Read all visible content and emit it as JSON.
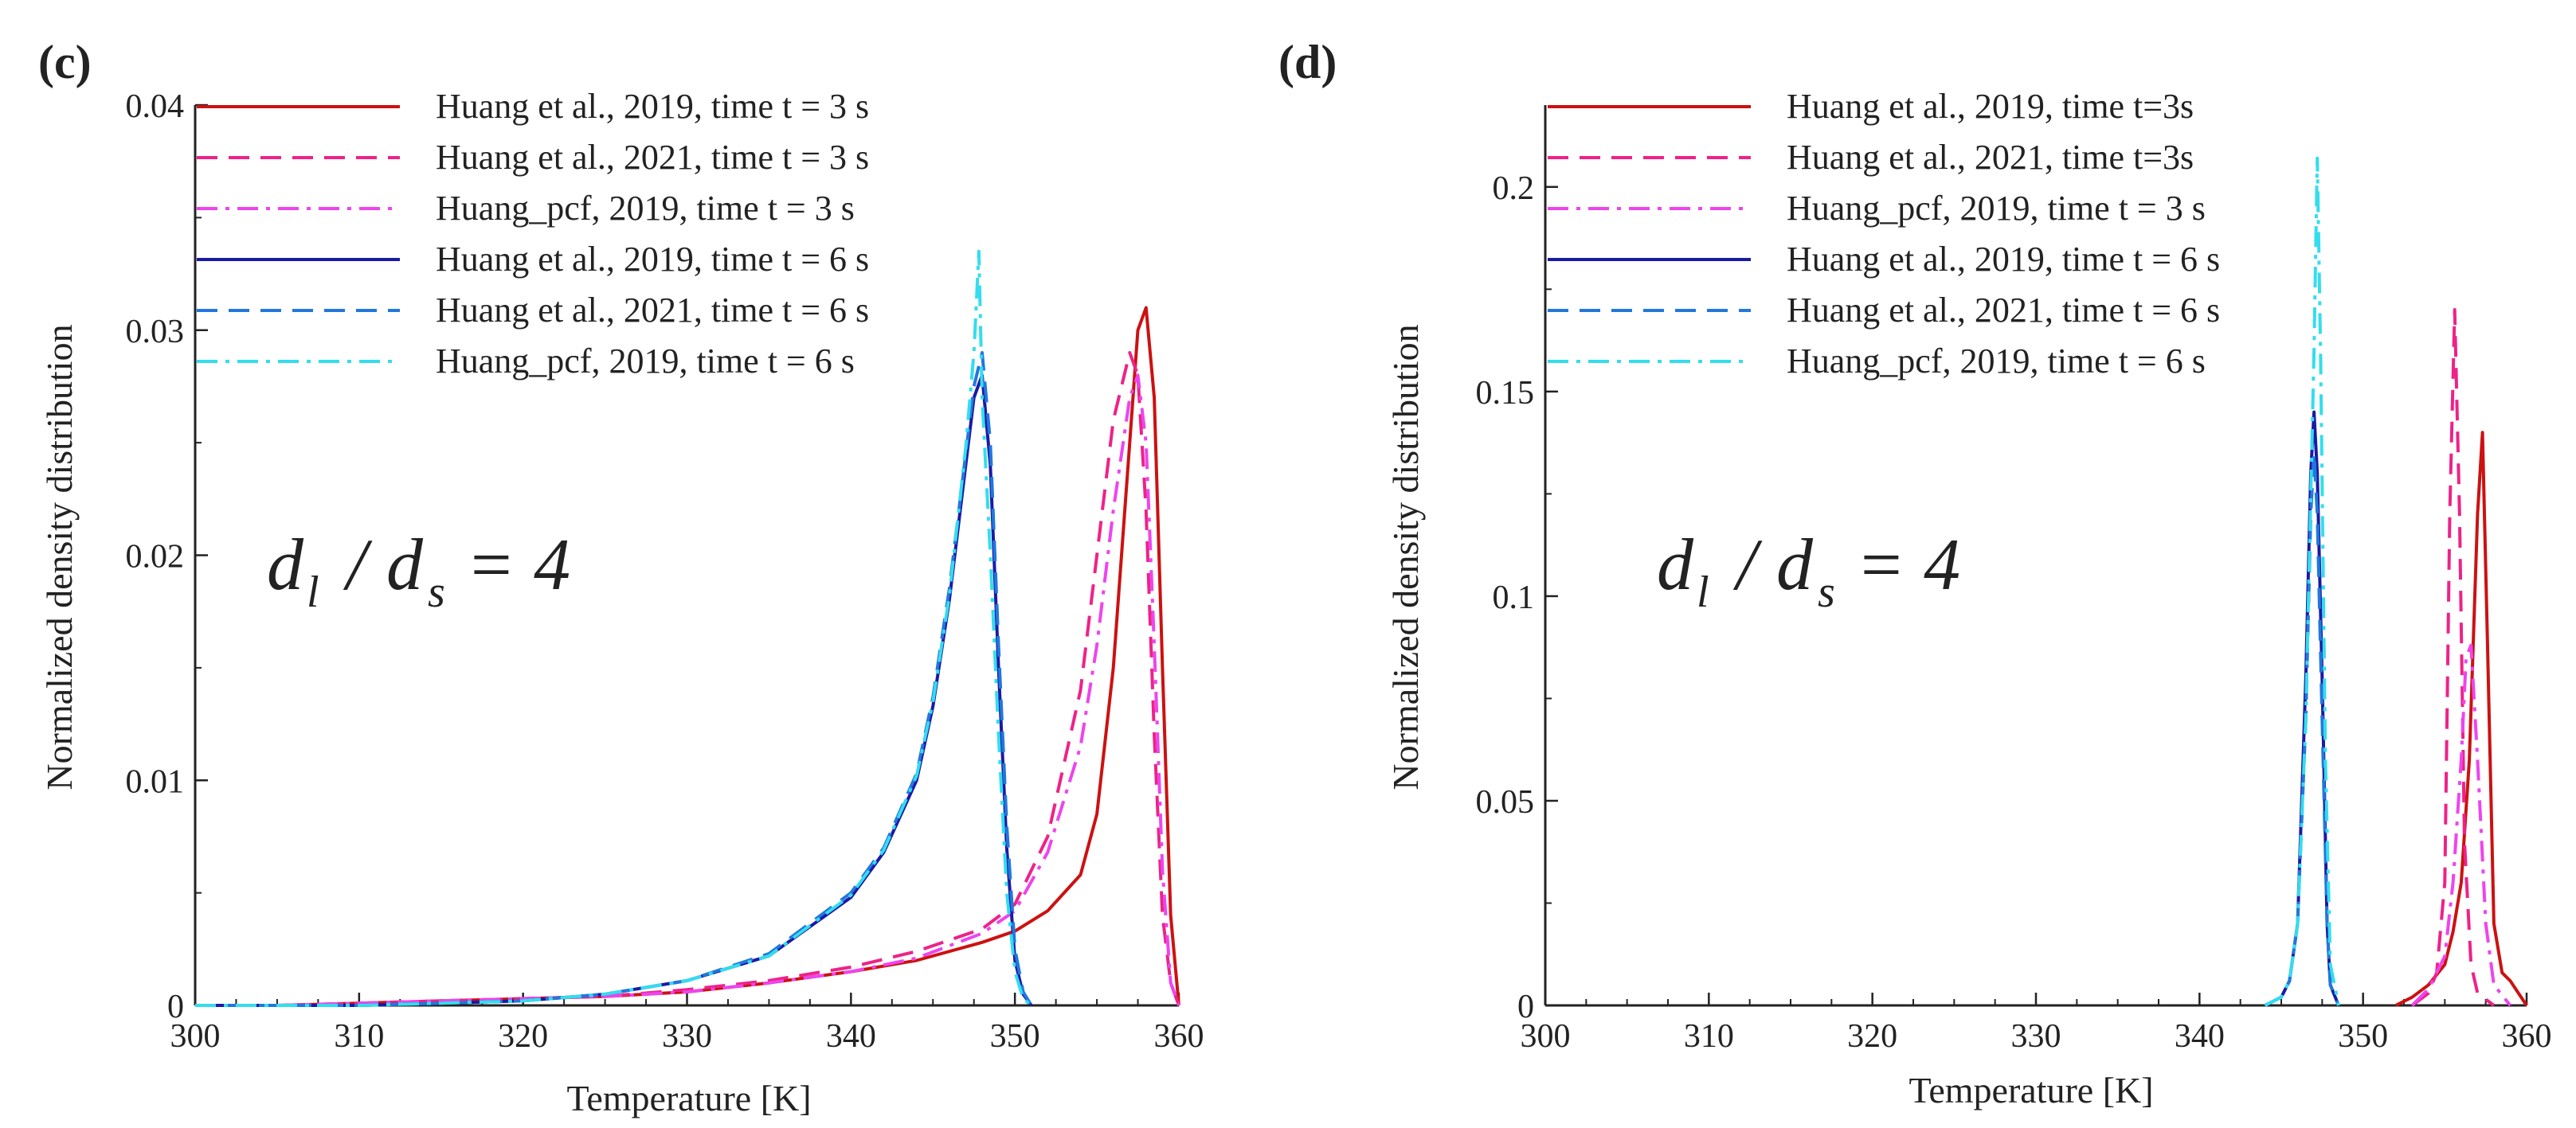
{
  "chart_data": [
    {
      "type": "line",
      "panel_label": "(c)",
      "xlabel": "Temperature [K]",
      "ylabel": "Normalized density distribution",
      "xlim": [
        300,
        360
      ],
      "ylim": [
        0,
        0.04
      ],
      "x_ticks": [
        300,
        310,
        320,
        330,
        340,
        350,
        360
      ],
      "x_tick_labels": [
        "300",
        "310",
        "320",
        "330",
        "340",
        "350",
        "360"
      ],
      "y_ticks": [
        0,
        0.01,
        0.02,
        0.03,
        0.04
      ],
      "y_tick_labels": [
        "0",
        "0.01",
        "0.02",
        "0.03",
        "0.04"
      ],
      "annotation": {
        "base1": "d",
        "sub1": "l",
        "sep": "/",
        "base2": "d",
        "sub2": "s",
        "rhs": "= 4"
      },
      "legend_position": "top-left",
      "series": [
        {
          "name": "Huang et al., 2019, time t = 3 s",
          "color": "#cc1111",
          "style": "solid",
          "x": [
            300,
            305,
            310,
            315,
            320,
            325,
            330,
            335,
            340,
            344,
            348,
            350,
            352,
            354,
            355,
            356,
            357,
            357.5,
            358,
            358.5,
            359,
            359.5,
            360
          ],
          "y": [
            0,
            0,
            0.0001,
            0.0002,
            0.0003,
            0.0004,
            0.0006,
            0.001,
            0.0015,
            0.002,
            0.0028,
            0.0033,
            0.0042,
            0.0058,
            0.0085,
            0.015,
            0.025,
            0.03,
            0.031,
            0.027,
            0.015,
            0.004,
            0
          ]
        },
        {
          "name": "Huang et al., 2021, time t = 3 s",
          "color": "#ee2288",
          "style": "dashed",
          "x": [
            300,
            305,
            310,
            315,
            320,
            325,
            330,
            335,
            340,
            344,
            348,
            350,
            352,
            354,
            355,
            356,
            357,
            357.5,
            358,
            358.5,
            359,
            359.5,
            360
          ],
          "y": [
            0,
            0,
            0.0001,
            0.0002,
            0.0003,
            0.0004,
            0.0007,
            0.0011,
            0.0017,
            0.0024,
            0.0034,
            0.0045,
            0.0075,
            0.014,
            0.02,
            0.026,
            0.029,
            0.028,
            0.022,
            0.012,
            0.004,
            0.001,
            0
          ]
        },
        {
          "name": "Huang_pcf, 2019, time t = 3 s",
          "color": "#ee44ee",
          "style": "dashdot",
          "x": [
            300,
            305,
            310,
            315,
            320,
            325,
            330,
            335,
            340,
            344,
            348,
            350,
            352,
            354,
            355,
            356,
            357,
            357.5,
            358,
            358.5,
            359,
            359.5,
            360
          ],
          "y": [
            0,
            0,
            0.0001,
            0.0002,
            0.0003,
            0.0004,
            0.0006,
            0.001,
            0.0015,
            0.0021,
            0.0032,
            0.0042,
            0.0068,
            0.0115,
            0.016,
            0.022,
            0.027,
            0.028,
            0.025,
            0.016,
            0.006,
            0.001,
            0
          ]
        },
        {
          "name": "Huang et al., 2019, time t = 6 s",
          "color": "#1a1aa6",
          "style": "solid",
          "x": [
            300,
            305,
            310,
            315,
            320,
            325,
            330,
            335,
            340,
            342,
            344,
            345,
            346,
            347,
            347.5,
            348,
            348.5,
            349,
            349.5,
            350,
            350.5,
            351
          ],
          "y": [
            0,
            0,
            0,
            0.0001,
            0.0002,
            0.0005,
            0.0011,
            0.0022,
            0.0048,
            0.0068,
            0.01,
            0.0133,
            0.018,
            0.024,
            0.027,
            0.028,
            0.024,
            0.015,
            0.007,
            0.002,
            0.0005,
            0
          ]
        },
        {
          "name": "Huang et al., 2021, time t = 6 s",
          "color": "#2277dd",
          "style": "dashed",
          "x": [
            300,
            305,
            310,
            315,
            320,
            325,
            330,
            335,
            340,
            342,
            344,
            345,
            346,
            347,
            347.5,
            348,
            348.5,
            349,
            349.5,
            350,
            350.5,
            351
          ],
          "y": [
            0,
            0,
            0,
            0.0001,
            0.0002,
            0.0005,
            0.0011,
            0.0023,
            0.005,
            0.007,
            0.0103,
            0.0137,
            0.0185,
            0.0245,
            0.0275,
            0.029,
            0.025,
            0.016,
            0.008,
            0.0025,
            0.0006,
            0
          ]
        },
        {
          "name": "Huang_pcf, 2019, time t = 6 s",
          "color": "#33ddee",
          "style": "dashdot",
          "x": [
            300,
            305,
            310,
            315,
            320,
            325,
            330,
            335,
            340,
            342,
            344,
            345,
            346,
            347,
            347.5,
            347.8,
            348,
            348.5,
            349,
            349.5,
            350,
            350.5,
            351
          ],
          "y": [
            0,
            0,
            0,
            0.0001,
            0.0002,
            0.0005,
            0.0011,
            0.0022,
            0.0049,
            0.0069,
            0.0102,
            0.0135,
            0.0182,
            0.0248,
            0.029,
            0.0335,
            0.027,
            0.02,
            0.012,
            0.005,
            0.0015,
            0.0003,
            0
          ]
        }
      ]
    },
    {
      "type": "line",
      "panel_label": "(d)",
      "xlabel": "Temperature [K]",
      "ylabel": "Normalized density distribution",
      "xlim": [
        300,
        360
      ],
      "ylim": [
        0,
        0.22
      ],
      "x_ticks": [
        300,
        310,
        320,
        330,
        340,
        350,
        360
      ],
      "x_tick_labels": [
        "300",
        "310",
        "320",
        "330",
        "340",
        "350",
        "360"
      ],
      "y_ticks": [
        0,
        0.05,
        0.1,
        0.15,
        0.2
      ],
      "y_tick_labels": [
        "0",
        "0.05",
        "0.1",
        "0.15",
        "0.2"
      ],
      "annotation": {
        "base1": "d",
        "sub1": "l",
        "sep": "/",
        "base2": "d",
        "sub2": "s",
        "rhs": "= 4"
      },
      "legend_position": "top-left",
      "series": [
        {
          "name": "Huang et al., 2019, time t=3s",
          "color": "#cc1111",
          "style": "solid",
          "x": [
            352,
            353,
            354,
            355,
            355.5,
            356,
            356.5,
            357,
            357.3,
            357.6,
            358,
            358.5,
            359,
            360
          ],
          "y": [
            0,
            0.002,
            0.005,
            0.01,
            0.018,
            0.03,
            0.06,
            0.12,
            0.14,
            0.09,
            0.02,
            0.008,
            0.006,
            0
          ]
        },
        {
          "name": "Huang et al., 2021, time t=3s",
          "color": "#ee2288",
          "style": "dashed",
          "x": [
            353,
            354,
            354.5,
            355,
            355.3,
            355.6,
            355.9,
            356.2,
            356.6,
            357,
            358
          ],
          "y": [
            0,
            0.003,
            0.008,
            0.03,
            0.12,
            0.17,
            0.12,
            0.04,
            0.01,
            0.003,
            0
          ]
        },
        {
          "name": "Huang_pcf, 2019, time t = 3 s",
          "color": "#ee44ee",
          "style": "dashdot",
          "x": [
            353,
            354,
            355,
            355.5,
            356,
            356.3,
            356.6,
            357,
            357.5,
            358,
            359
          ],
          "y": [
            0,
            0.004,
            0.012,
            0.03,
            0.06,
            0.085,
            0.088,
            0.06,
            0.02,
            0.005,
            0
          ]
        },
        {
          "name": "Huang et al., 2019, time t = 6 s",
          "color": "#1a1aa6",
          "style": "solid",
          "x": [
            344,
            345,
            345.5,
            346,
            346.5,
            346.8,
            347,
            347.2,
            347.5,
            347.8,
            348,
            348.5
          ],
          "y": [
            0,
            0.002,
            0.006,
            0.02,
            0.08,
            0.13,
            0.145,
            0.13,
            0.08,
            0.02,
            0.005,
            0
          ]
        },
        {
          "name": "Huang et al., 2021, time t = 6 s",
          "color": "#2277dd",
          "style": "dashed",
          "x": [
            344,
            345,
            345.5,
            346,
            346.5,
            346.8,
            347,
            347.2,
            347.5,
            347.8,
            348,
            348.5
          ],
          "y": [
            0,
            0.002,
            0.006,
            0.02,
            0.07,
            0.12,
            0.135,
            0.12,
            0.07,
            0.02,
            0.005,
            0
          ]
        },
        {
          "name": "Huang_pcf, 2019, time t = 6 s",
          "color": "#33ddee",
          "style": "dashdot",
          "x": [
            344,
            345,
            345.5,
            346,
            346.5,
            347,
            347.2,
            347.4,
            347.7,
            348,
            348.5
          ],
          "y": [
            0,
            0.002,
            0.006,
            0.02,
            0.07,
            0.16,
            0.207,
            0.16,
            0.06,
            0.01,
            0
          ]
        }
      ]
    }
  ]
}
